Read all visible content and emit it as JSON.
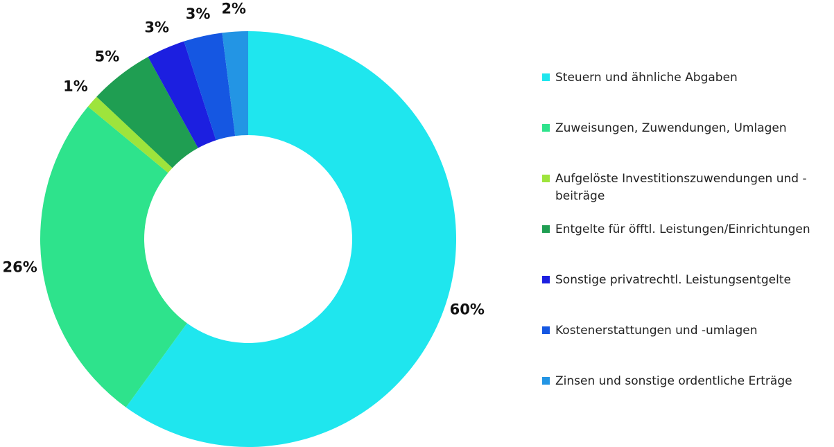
{
  "chart_data": {
    "type": "donut",
    "categories": [
      "Steuern und ähnliche Abgaben",
      "Zuweisungen, Zuwendungen, Umlagen",
      "Aufgelöste Investitionszuwendungen und -beiträge",
      "Entgelte für öfftl. Leistungen/Einrichtungen",
      "Sonstige privatrechtl. Leistungsentgelte",
      "Kostenerstattungen und -umlagen",
      "Zinsen und sonstige ordentliche Erträge"
    ],
    "values": [
      60,
      26,
      1,
      5,
      3,
      3,
      2
    ],
    "value_labels": [
      "60%",
      "26%",
      "1%",
      "5%",
      "3%",
      "3%",
      "2%"
    ],
    "colors": [
      "#1fe6ee",
      "#2ee38c",
      "#9ee43c",
      "#1f9e52",
      "#1c1fe0",
      "#1557e2",
      "#2395e4"
    ],
    "legend": "right"
  }
}
